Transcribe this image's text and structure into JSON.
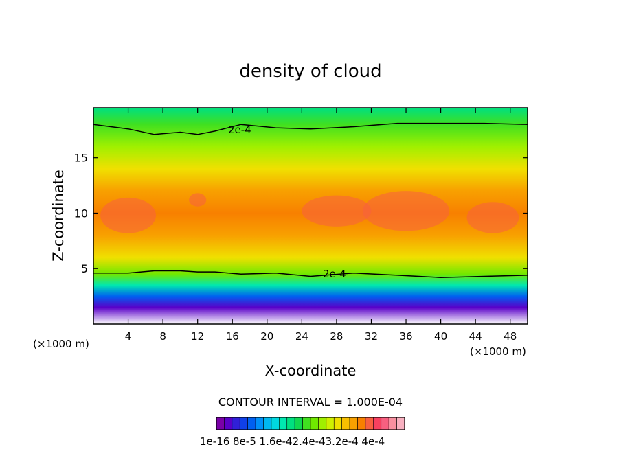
{
  "chart_data": {
    "type": "heatmap",
    "title": "density of cloud",
    "xlabel": "X-coordinate",
    "ylabel": "Z-coordinate",
    "x_unit_left": "(×1000 m)",
    "x_unit_right": "(×1000 m)",
    "xlim": [
      0,
      50
    ],
    "ylim": [
      0,
      19.5
    ],
    "x_ticks": [
      4,
      8,
      12,
      16,
      20,
      24,
      28,
      32,
      36,
      40,
      44,
      48
    ],
    "y_ticks": [
      5,
      10,
      15
    ],
    "contour_interval_text": "CONTOUR INTERVAL = 1.000E-04",
    "contour_labels": [
      "2e-4",
      "2e-4"
    ],
    "colorbar": {
      "labels": [
        "1e-16",
        "8e-5",
        "1.6e-4",
        "2.4e-4",
        "3.2e-4",
        "4e-4"
      ],
      "label_text": "1e-16 8e-5 1.6e-42.4e-43.2e-4 4e-4",
      "colors": [
        "#7a00a8",
        "#5a00c8",
        "#3020d8",
        "#1040e8",
        "#0060f0",
        "#0090f8",
        "#00b8f0",
        "#00d8e0",
        "#00e8b0",
        "#00e080",
        "#10d850",
        "#40e020",
        "#70e800",
        "#a0f000",
        "#d0f000",
        "#f0e000",
        "#f8c000",
        "#f8a000",
        "#f88000",
        "#f86040",
        "#f84060",
        "#f86080",
        "#f890a0",
        "#f8b0c0"
      ]
    },
    "vertical_profile": [
      {
        "z": 0.0,
        "level": "none"
      },
      {
        "z": 1.5,
        "level": 1
      },
      {
        "z": 2.5,
        "level": 4
      },
      {
        "z": 3.5,
        "level": 8
      },
      {
        "z": 4.5,
        "level": 12
      },
      {
        "z": 6.0,
        "level": 15
      },
      {
        "z": 8.0,
        "level": 17
      },
      {
        "z": 10.0,
        "level": 18
      },
      {
        "z": 12.0,
        "level": 17
      },
      {
        "z": 14.0,
        "level": 15
      },
      {
        "z": 16.0,
        "level": 13
      },
      {
        "z": 18.0,
        "level": 11
      },
      {
        "z": 19.5,
        "level": 9
      }
    ],
    "contour_2e4_upper_z": [
      18.0,
      17.6,
      17.1,
      17.3,
      17.1,
      17.4,
      18.0,
      17.7,
      17.6,
      17.8,
      18.1,
      18.1,
      18.1,
      18.0
    ],
    "contour_2e4_lower_z": [
      4.6,
      4.6,
      4.8,
      4.8,
      4.7,
      4.7,
      4.5,
      4.6,
      4.3,
      4.6,
      4.4,
      4.2,
      4.3,
      4.4
    ],
    "contour_x": [
      0,
      4,
      7,
      10,
      12,
      14,
      17,
      21,
      25,
      30,
      35,
      40,
      45,
      50
    ]
  }
}
